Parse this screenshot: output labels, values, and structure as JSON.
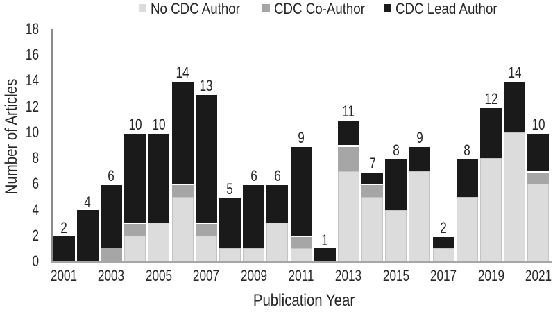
{
  "chart_data": {
    "type": "bar",
    "stacked": true,
    "title": "",
    "xlabel": "Publication Year",
    "ylabel": "Number of Articles",
    "ylim": [
      0,
      18
    ],
    "ytick_step": 2,
    "grid": false,
    "legend_position": "top",
    "categories": [
      2001,
      2002,
      2003,
      2004,
      2005,
      2006,
      2007,
      2008,
      2009,
      2010,
      2011,
      2012,
      2013,
      2014,
      2015,
      2016,
      2017,
      2018,
      2019,
      2020,
      2021
    ],
    "xtick_labels": [
      "2001",
      "2003",
      "2005",
      "2007",
      "2009",
      "2011",
      "2013",
      "2015",
      "2017",
      "2019",
      "2021"
    ],
    "series": [
      {
        "name": "No CDC Author",
        "color": "#DCDCDC",
        "values": [
          0,
          0,
          0,
          2,
          3,
          5,
          2,
          1,
          1,
          3,
          1,
          0,
          7,
          5,
          4,
          7,
          1,
          5,
          8,
          10,
          6
        ]
      },
      {
        "name": "CDC Co-Author",
        "color": "#A6A6A6",
        "values": [
          0,
          0,
          1,
          1,
          0,
          1,
          1,
          0,
          0,
          0,
          1,
          0,
          2,
          1,
          0,
          0,
          0,
          0,
          0,
          0,
          1
        ]
      },
      {
        "name": "CDC Lead Author",
        "color": "#1A1A1A",
        "values": [
          2,
          4,
          5,
          7,
          7,
          8,
          10,
          4,
          5,
          3,
          7,
          1,
          2,
          1,
          4,
          2,
          1,
          3,
          4,
          4,
          3
        ]
      }
    ],
    "totals": [
      2,
      4,
      6,
      10,
      10,
      14,
      13,
      5,
      6,
      6,
      9,
      1,
      11,
      7,
      8,
      9,
      2,
      8,
      12,
      14,
      10
    ],
    "ytick_labels": [
      "0",
      "2",
      "4",
      "6",
      "8",
      "10",
      "12",
      "14",
      "16",
      "18"
    ]
  },
  "colors": {
    "y_axis_line": "#8C8C8C",
    "x_axis_line": "#A6A6A6",
    "label_text": "#262626"
  }
}
